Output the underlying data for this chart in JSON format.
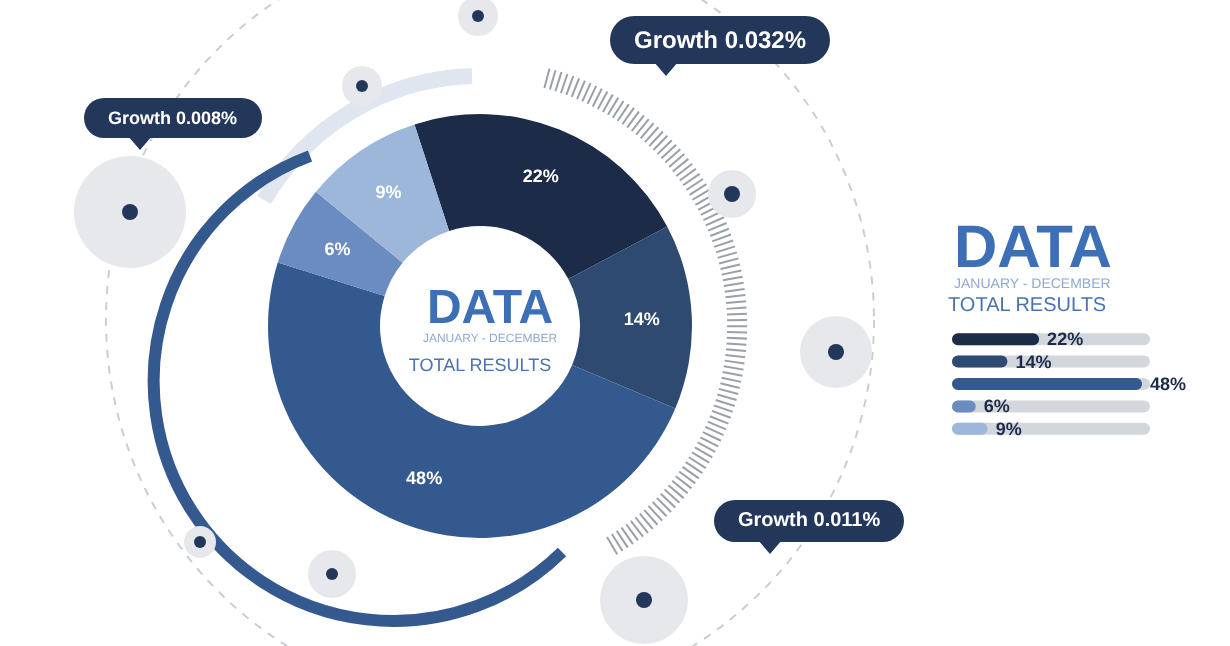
{
  "chart_data": [
    {
      "type": "donut",
      "title": "DATA",
      "subtitle": "JANUARY - DECEMBER",
      "annotations": [
        "TOTAL RESULTS",
        "Growth 0.032%",
        "Growth 0.008%",
        "Growth 0.011%"
      ],
      "categories": [
        null,
        null,
        null,
        null,
        null
      ],
      "values": [
        22,
        14,
        48,
        6,
        9
      ],
      "value_labels": [
        "22%",
        "14%",
        "48%",
        "6%",
        "9%"
      ],
      "colors": [
        "#1c2b47",
        "#2f4a70",
        "#34598f",
        "#6a8cc0",
        "#9db7da"
      ]
    },
    {
      "type": "bar",
      "orientation": "horizontal",
      "title": "DATA",
      "subtitle": "JANUARY - DECEMBER",
      "annotations": [
        "TOTAL RESULTS"
      ],
      "categories": [
        null,
        null,
        null,
        null,
        null
      ],
      "values": [
        22,
        14,
        48,
        6,
        9
      ],
      "value_labels": [
        "22%",
        "14%",
        "48%",
        "6%",
        "9%"
      ],
      "colors": [
        "#1c2b47",
        "#2f4a70",
        "#34598f",
        "#6a8cc0",
        "#9db7da"
      ],
      "tick_labels": false,
      "grid": false
    }
  ]
}
